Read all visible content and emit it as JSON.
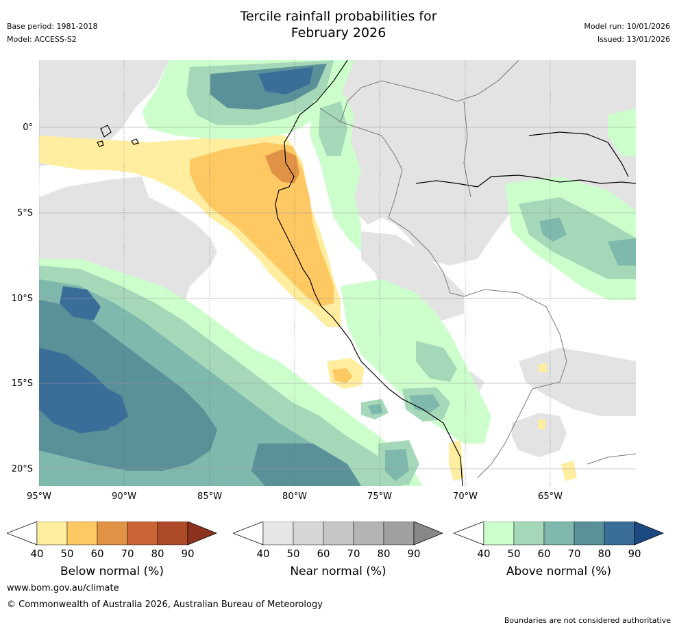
{
  "header": {
    "title_line1": "Tercile rainfall probabilities for",
    "title_line2": "February 2026",
    "base_period": "Base period: 1981-2018",
    "model": "Model: ACCESS-S2",
    "model_run": "Model run: 10/01/2026",
    "issued": "Issued: 13/01/2026"
  },
  "map": {
    "lat_labels": [
      "0°",
      "5°S",
      "10°S",
      "15°S",
      "20°S"
    ],
    "lon_labels": [
      "95°W",
      "90°W",
      "85°W",
      "80°W",
      "75°W",
      "70°W",
      "65°W"
    ]
  },
  "colorbars": [
    {
      "title": "Below normal (%)",
      "ticks": [
        "40",
        "50",
        "60",
        "70",
        "80",
        "90"
      ],
      "colors": [
        "#ffffff",
        "#ffeda0",
        "#fec862",
        "#e09344",
        "#cc6536",
        "#ad4b29",
        "#8c321e"
      ]
    },
    {
      "title": "Near normal (%)",
      "ticks": [
        "40",
        "50",
        "60",
        "70",
        "80",
        "90"
      ],
      "colors": [
        "#ffffff",
        "#e6e6e6",
        "#d6d6d6",
        "#c6c6c6",
        "#b4b4b4",
        "#a0a0a0",
        "#888888"
      ]
    },
    {
      "title": "Above normal (%)",
      "ticks": [
        "40",
        "50",
        "60",
        "70",
        "80",
        "90"
      ],
      "colors": [
        "#ffffff",
        "#ccffcc",
        "#a4d8b8",
        "#7fb8ac",
        "#5a9098",
        "#3b6d99",
        "#1b4a80"
      ]
    }
  ],
  "footer": {
    "website": "www.bom.gov.au/climate",
    "copyright": "© Commonwealth of Australia 2026, Australian Bureau of Meteorology",
    "disclaimer": "Boundaries are not considered authoritative"
  }
}
